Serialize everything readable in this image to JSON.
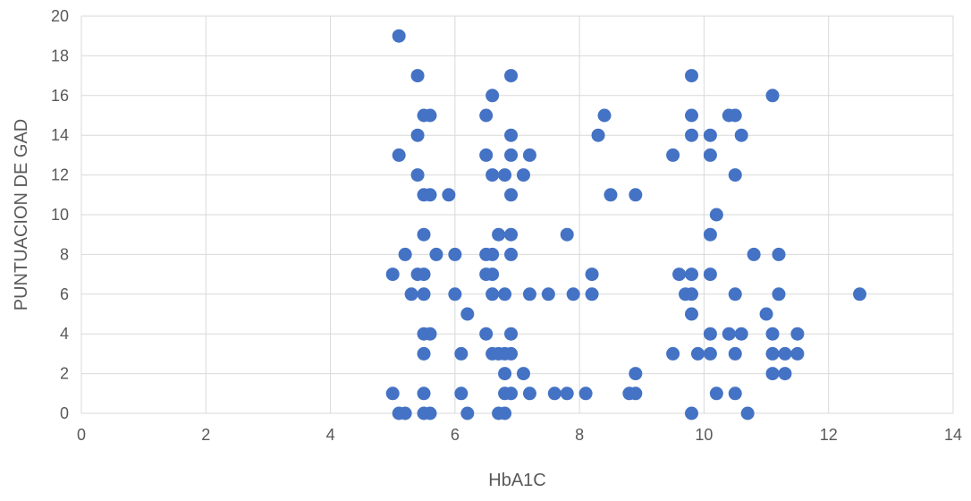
{
  "chart_data": {
    "type": "scatter",
    "title": "",
    "xlabel": "HbA1C",
    "ylabel": "PUNTUACION DE GAD",
    "xlim": [
      0,
      14
    ],
    "ylim": [
      0,
      20
    ],
    "x_ticks": [
      0,
      2,
      4,
      6,
      8,
      10,
      12,
      14
    ],
    "y_ticks": [
      0,
      2,
      4,
      6,
      8,
      10,
      12,
      14,
      16,
      18,
      20
    ],
    "grid": true,
    "legend": "none",
    "series_color": "#4472C4",
    "points": [
      [
        5.1,
        19
      ],
      [
        5.4,
        17
      ],
      [
        6.9,
        17
      ],
      [
        9.8,
        17
      ],
      [
        6.6,
        16
      ],
      [
        11.1,
        16
      ],
      [
        5.5,
        15
      ],
      [
        5.6,
        15
      ],
      [
        6.5,
        15
      ],
      [
        8.4,
        15
      ],
      [
        9.8,
        15
      ],
      [
        10.4,
        15
      ],
      [
        10.5,
        15
      ],
      [
        5.4,
        14
      ],
      [
        6.9,
        14
      ],
      [
        8.3,
        14
      ],
      [
        9.8,
        14
      ],
      [
        10.1,
        14
      ],
      [
        10.6,
        14
      ],
      [
        5.1,
        13
      ],
      [
        6.5,
        13
      ],
      [
        6.9,
        13
      ],
      [
        7.2,
        13
      ],
      [
        9.5,
        13
      ],
      [
        10.1,
        13
      ],
      [
        5.4,
        12
      ],
      [
        6.6,
        12
      ],
      [
        6.8,
        12
      ],
      [
        7.1,
        12
      ],
      [
        10.5,
        12
      ],
      [
        5.5,
        11
      ],
      [
        5.6,
        11
      ],
      [
        5.9,
        11
      ],
      [
        6.9,
        11
      ],
      [
        8.5,
        11
      ],
      [
        8.9,
        11
      ],
      [
        10.2,
        10
      ],
      [
        5.5,
        9
      ],
      [
        6.7,
        9
      ],
      [
        6.9,
        9
      ],
      [
        7.8,
        9
      ],
      [
        10.1,
        9
      ],
      [
        5.2,
        8
      ],
      [
        5.7,
        8
      ],
      [
        6.0,
        8
      ],
      [
        6.5,
        8
      ],
      [
        6.6,
        8
      ],
      [
        6.9,
        8
      ],
      [
        10.8,
        8
      ],
      [
        11.2,
        8
      ],
      [
        5.0,
        7
      ],
      [
        5.4,
        7
      ],
      [
        5.5,
        7
      ],
      [
        6.5,
        7
      ],
      [
        6.6,
        7
      ],
      [
        8.2,
        7
      ],
      [
        9.6,
        7
      ],
      [
        9.8,
        7
      ],
      [
        10.1,
        7
      ],
      [
        5.3,
        6
      ],
      [
        5.5,
        6
      ],
      [
        6.0,
        6
      ],
      [
        6.6,
        6
      ],
      [
        6.8,
        6
      ],
      [
        7.2,
        6
      ],
      [
        7.5,
        6
      ],
      [
        7.9,
        6
      ],
      [
        8.2,
        6
      ],
      [
        9.7,
        6
      ],
      [
        9.8,
        6
      ],
      [
        10.5,
        6
      ],
      [
        11.2,
        6
      ],
      [
        12.5,
        6
      ],
      [
        6.2,
        5
      ],
      [
        9.8,
        5
      ],
      [
        11.0,
        5
      ],
      [
        5.5,
        4
      ],
      [
        5.6,
        4
      ],
      [
        6.5,
        4
      ],
      [
        6.9,
        4
      ],
      [
        10.1,
        4
      ],
      [
        10.4,
        4
      ],
      [
        10.6,
        4
      ],
      [
        11.1,
        4
      ],
      [
        11.5,
        4
      ],
      [
        5.5,
        3
      ],
      [
        6.1,
        3
      ],
      [
        6.6,
        3
      ],
      [
        6.7,
        3
      ],
      [
        6.8,
        3
      ],
      [
        6.9,
        3
      ],
      [
        9.5,
        3
      ],
      [
        9.9,
        3
      ],
      [
        10.1,
        3
      ],
      [
        10.5,
        3
      ],
      [
        11.1,
        3
      ],
      [
        11.3,
        3
      ],
      [
        11.5,
        3
      ],
      [
        6.8,
        2
      ],
      [
        7.1,
        2
      ],
      [
        8.9,
        2
      ],
      [
        11.1,
        2
      ],
      [
        11.3,
        2
      ],
      [
        5.0,
        1
      ],
      [
        5.5,
        1
      ],
      [
        6.1,
        1
      ],
      [
        6.8,
        1
      ],
      [
        6.9,
        1
      ],
      [
        7.2,
        1
      ],
      [
        7.6,
        1
      ],
      [
        7.8,
        1
      ],
      [
        8.1,
        1
      ],
      [
        8.8,
        1
      ],
      [
        8.9,
        1
      ],
      [
        10.2,
        1
      ],
      [
        10.5,
        1
      ],
      [
        5.1,
        0
      ],
      [
        5.2,
        0
      ],
      [
        5.5,
        0
      ],
      [
        5.6,
        0
      ],
      [
        6.2,
        0
      ],
      [
        6.7,
        0
      ],
      [
        6.8,
        0
      ],
      [
        9.8,
        0
      ],
      [
        10.7,
        0
      ]
    ]
  }
}
